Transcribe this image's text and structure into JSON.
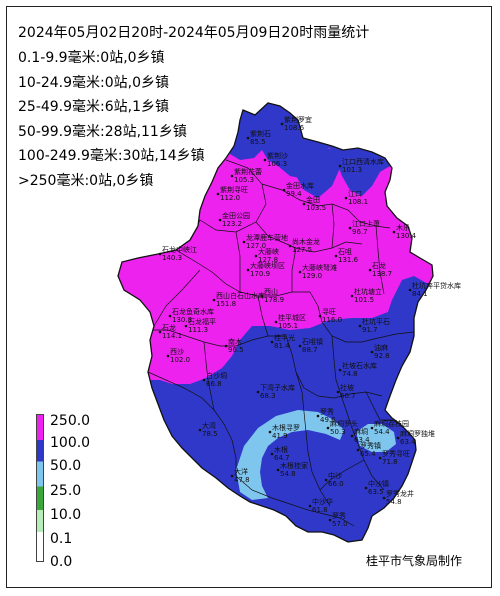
{
  "map": {
    "title": "2024年05月02日20时-2024年05月09日20时雨量统计",
    "stats": [
      "0.1-9.9毫米:0站,0乡镇",
      "10-24.9毫米:0站,0乡镇",
      "25-49.9毫米:6站,1乡镇",
      "50-99.9毫米:28站,11乡镇",
      "100-249.9毫米:30站,14乡镇",
      ">250毫米:0站,0乡镇"
    ],
    "credit": "桂平市气象局制作",
    "colors": {
      "ge100": "#ee22ee",
      "50to100": "#2f38c8",
      "25to50": "#7fc6ee",
      "10to25": "#3aa73a",
      "0to10": "#b8ecb8",
      "boundary": "#111111"
    }
  },
  "legend": [
    {
      "label": "250.0",
      "color": "#ee22ee"
    },
    {
      "label": "100.0",
      "color": "#2f38c8"
    },
    {
      "label": "50.0",
      "color": "#7fc6ee"
    },
    {
      "label": "25.0",
      "color": "#3aa73a"
    },
    {
      "label": "10.0",
      "color": "#b8ecb8"
    },
    {
      "label": "0.1",
      "color": "#ffffff"
    },
    {
      "label": "0.0",
      "color": "#ffffff"
    }
  ],
  "stations": [
    {
      "name": "紫荆罗宜",
      "value": "108.6"
    },
    {
      "name": "紫荆石",
      "value": "85.5"
    },
    {
      "name": "紫荆沙",
      "value": "106.3"
    },
    {
      "name": "紫荆花蕾",
      "value": "105.3"
    },
    {
      "name": "江口西清水库",
      "value": "101.3"
    },
    {
      "name": "紫荆寻旺",
      "value": "112.0"
    },
    {
      "name": "金田水库",
      "value": "99.4"
    },
    {
      "name": "金田",
      "value": "103.5"
    },
    {
      "name": "江口",
      "value": "108.1"
    },
    {
      "name": "金田公园",
      "value": "123.2"
    },
    {
      "name": "江口上萧",
      "value": "96.7"
    },
    {
      "name": "木乐",
      "value": "130.4"
    },
    {
      "name": "石龙中峡江",
      "value": "140.3"
    },
    {
      "name": "龙潭鹿车营地",
      "value": "127.0"
    },
    {
      "name": "尚木金龙",
      "value": "127.5"
    },
    {
      "name": "大藤峡",
      "value": "127.8"
    },
    {
      "name": "石咀",
      "value": "131.6"
    },
    {
      "name": "大藤峡坝区",
      "value": "170.9"
    },
    {
      "name": "大藤峡弩滩",
      "value": "129.0"
    },
    {
      "name": "西山",
      "value": "178.9"
    },
    {
      "name": "杜坑奔平贷水库",
      "value": "84.1"
    },
    {
      "name": "石龙",
      "value": "138.7"
    },
    {
      "name": "杜坑塘立",
      "value": "101.5"
    },
    {
      "name": "西山白石山水库",
      "value": "151.8"
    },
    {
      "name": "石龙鱼奇水库",
      "value": "130.8"
    },
    {
      "name": "桂平城区",
      "value": "105.1"
    },
    {
      "name": "寻旺",
      "value": "116.0"
    },
    {
      "name": "石龙福平",
      "value": "111.3"
    },
    {
      "name": "杜坑平石",
      "value": "91.7"
    },
    {
      "name": "石龙",
      "value": "114.1"
    },
    {
      "name": "西沙",
      "value": "102.0"
    },
    {
      "name": "南木",
      "value": "96.5"
    },
    {
      "name": "桂平光",
      "value": "81.4"
    },
    {
      "name": "石咀镇",
      "value": "88.7"
    },
    {
      "name": "油麻",
      "value": "92.8"
    },
    {
      "name": "白沙垌",
      "value": "66.8"
    },
    {
      "name": "社坡石水库",
      "value": "74.8"
    },
    {
      "name": "下湾子水库",
      "value": "68.3"
    },
    {
      "name": "社坡",
      "value": "60.7"
    },
    {
      "name": "大湾",
      "value": "78.5"
    },
    {
      "name": "罗秀",
      "value": "49.6"
    },
    {
      "name": "木根寻罗",
      "value": "41.9"
    },
    {
      "name": "麻垌罗头",
      "value": "50.3"
    },
    {
      "name": "麻垌荔枝园",
      "value": "54.4"
    },
    {
      "name": "麻垌",
      "value": "63.4"
    },
    {
      "name": "麻垌罗独堆",
      "value": "63.4"
    },
    {
      "name": "木根",
      "value": "64.7"
    },
    {
      "name": "罗秀镇",
      "value": "65.4"
    },
    {
      "name": "大洋",
      "value": "47.8"
    },
    {
      "name": "罗秀寻旺",
      "value": "71.8"
    },
    {
      "name": "木根桂家",
      "value": "54.8"
    },
    {
      "name": "中沙",
      "value": "66.0"
    },
    {
      "name": "中沙镇",
      "value": "63.5"
    },
    {
      "name": "罗秀龙井",
      "value": "54.8"
    },
    {
      "name": "中沙华",
      "value": "61.8"
    },
    {
      "name": "罗秀",
      "value": "57.0"
    }
  ]
}
